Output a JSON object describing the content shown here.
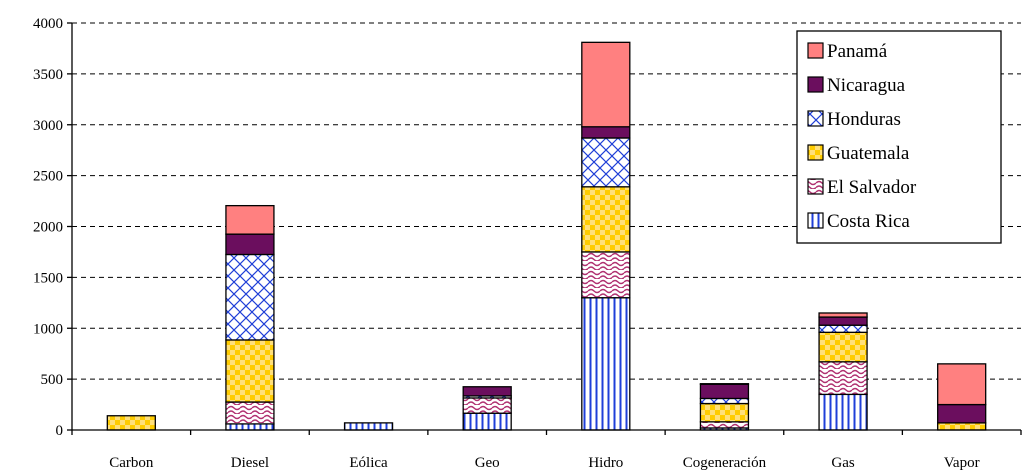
{
  "chart_data": {
    "type": "bar",
    "stacked": true,
    "title": "",
    "xlabel": "",
    "ylabel": "",
    "categories": [
      "Carbon",
      "Diesel",
      "Eólica",
      "Geo",
      "Hidro",
      "Cogeneración",
      "Gas",
      "Vapor"
    ],
    "series": [
      {
        "name": "Costa Rica",
        "values": [
          0,
          60,
          70,
          165,
          1300,
          20,
          350,
          0
        ],
        "color": "#1f3fd8",
        "pattern": "vertical-lines"
      },
      {
        "name": "El Salvador",
        "values": [
          0,
          215,
          0,
          150,
          450,
          60,
          320,
          0
        ],
        "color": "#b03070",
        "pattern": "waves"
      },
      {
        "name": "Guatemala",
        "values": [
          140,
          610,
          0,
          0,
          640,
          180,
          290,
          70
        ],
        "color": "#ffcc00",
        "pattern": "checker"
      },
      {
        "name": "Honduras",
        "values": [
          0,
          840,
          0,
          20,
          480,
          50,
          70,
          0
        ],
        "color": "#1f3fd8",
        "pattern": "crosshatch"
      },
      {
        "name": "Nicaragua",
        "values": [
          0,
          200,
          0,
          90,
          110,
          140,
          80,
          180
        ],
        "color": "#6b0e5e",
        "pattern": "solid"
      },
      {
        "name": "Panamá",
        "values": [
          0,
          280,
          0,
          0,
          830,
          5,
          40,
          400
        ],
        "color": "#ff8080",
        "pattern": "solid"
      }
    ],
    "ylim": [
      0,
      4000
    ],
    "yticks": [
      0,
      500,
      1000,
      1500,
      2000,
      2500,
      3000,
      3500,
      4000
    ],
    "grid": "horizontal-dashed",
    "legend_position": "top-right",
    "legend_order": [
      "Panamá",
      "Nicaragua",
      "Honduras",
      "Guatemala",
      "El Salvador",
      "Costa Rica"
    ]
  }
}
